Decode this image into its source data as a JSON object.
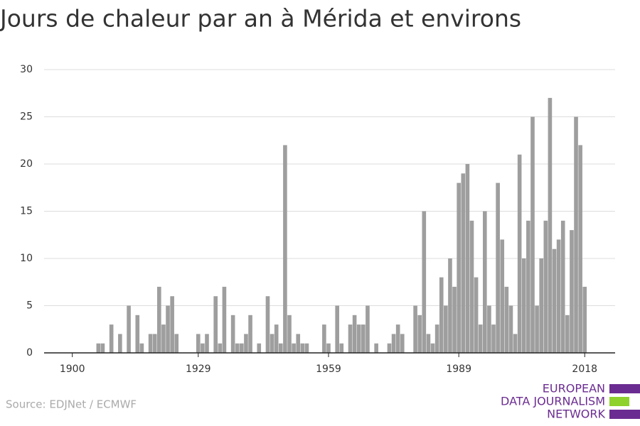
{
  "chart_data": {
    "type": "bar",
    "title": "Jours de chaleur par an à Mérida et environs",
    "source": "Source: EDJNet / ECMWF",
    "logo": [
      "EUROPEAN",
      "DATA JOURNALISM",
      "NETWORK"
    ],
    "color": "#9e9e9e",
    "x": [
      1900,
      1901,
      1902,
      1903,
      1904,
      1905,
      1906,
      1907,
      1908,
      1909,
      1910,
      1911,
      1912,
      1913,
      1914,
      1915,
      1916,
      1917,
      1918,
      1919,
      1920,
      1921,
      1922,
      1923,
      1924,
      1925,
      1926,
      1927,
      1928,
      1929,
      1930,
      1931,
      1932,
      1933,
      1934,
      1935,
      1936,
      1937,
      1938,
      1939,
      1940,
      1941,
      1942,
      1943,
      1944,
      1945,
      1946,
      1947,
      1948,
      1949,
      1950,
      1951,
      1952,
      1953,
      1954,
      1955,
      1956,
      1957,
      1958,
      1959,
      1960,
      1961,
      1962,
      1963,
      1964,
      1965,
      1966,
      1967,
      1968,
      1969,
      1970,
      1971,
      1972,
      1973,
      1974,
      1975,
      1976,
      1977,
      1978,
      1979,
      1980,
      1981,
      1982,
      1983,
      1984,
      1985,
      1986,
      1987,
      1988,
      1989,
      1990,
      1991,
      1992,
      1993,
      1994,
      1995,
      1996,
      1997,
      1998,
      1999,
      2000,
      2001,
      2002,
      2003,
      2004,
      2005,
      2006,
      2007,
      2008,
      2009,
      2010,
      2011,
      2012,
      2013,
      2014,
      2015,
      2016,
      2017,
      2018
    ],
    "values": [
      0,
      0,
      0,
      0,
      0,
      0,
      1,
      1,
      0,
      3,
      0,
      2,
      0,
      5,
      0,
      4,
      1,
      0,
      2,
      2,
      7,
      3,
      5,
      6,
      2,
      0,
      0,
      0,
      0,
      2,
      1,
      2,
      0,
      6,
      1,
      7,
      0,
      4,
      1,
      1,
      2,
      4,
      0,
      1,
      0,
      6,
      2,
      3,
      1,
      22,
      4,
      1,
      2,
      1,
      1,
      0,
      0,
      0,
      3,
      1,
      0,
      5,
      1,
      0,
      3,
      4,
      3,
      3,
      5,
      0,
      1,
      0,
      0,
      1,
      2,
      3,
      2,
      0,
      0,
      5,
      4,
      15,
      2,
      1,
      3,
      8,
      5,
      10,
      7,
      18,
      19,
      20,
      14,
      8,
      3,
      15,
      5,
      3,
      18,
      12,
      7,
      5,
      2,
      21,
      10,
      14,
      25,
      5,
      10,
      14,
      27,
      11,
      12,
      14,
      4,
      13,
      25,
      22,
      7
    ],
    "xlim": [
      1893.5,
      2025
    ],
    "xticks": [
      1900,
      1929,
      1959,
      1989,
      2018
    ],
    "ylim": [
      0,
      30
    ],
    "yticks": [
      0,
      5,
      10,
      15,
      20,
      25,
      30
    ],
    "grid": true
  }
}
